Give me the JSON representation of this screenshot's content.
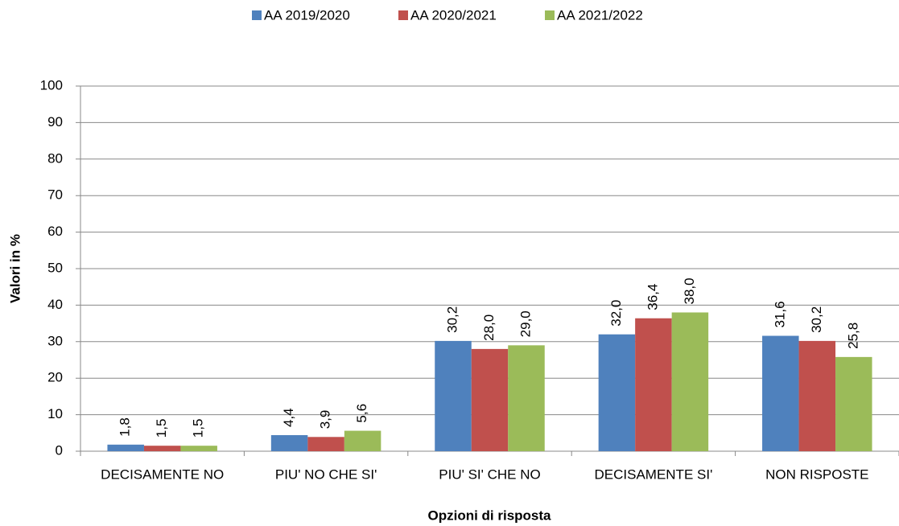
{
  "chart_data": {
    "type": "bar",
    "x_label": "Opzioni di risposta",
    "y_label": "Valori in %",
    "categories": [
      "DECISAMENTE NO",
      "PIU' NO CHE SI'",
      "PIU' SI' CHE NO",
      "DECISAMENTE SI'",
      "NON RISPOSTE"
    ],
    "series": [
      {
        "name": "AA 2019/2020",
        "color": "#4f81bd",
        "values": [
          1.8,
          4.4,
          30.2,
          32.0,
          31.6
        ],
        "value_labels": [
          "1,8",
          "4,4",
          "30,2",
          "32,0",
          "31,6"
        ]
      },
      {
        "name": "AA 2020/2021",
        "color": "#c0504d",
        "values": [
          1.5,
          3.9,
          28.0,
          36.4,
          30.2
        ],
        "value_labels": [
          "1,5",
          "3,9",
          "28,0",
          "36,4",
          "30,2"
        ]
      },
      {
        "name": "AA 2021/2022",
        "color": "#9bbb59",
        "values": [
          1.5,
          5.6,
          29.0,
          38.0,
          25.8
        ],
        "value_labels": [
          "1,5",
          "5,6",
          "29,0",
          "38,0",
          "25,8"
        ]
      }
    ],
    "ylim": [
      0,
      100
    ],
    "yticks": [
      0,
      10,
      20,
      30,
      40,
      50,
      60,
      70,
      80,
      90,
      100
    ],
    "grid": true,
    "legend": "top"
  }
}
